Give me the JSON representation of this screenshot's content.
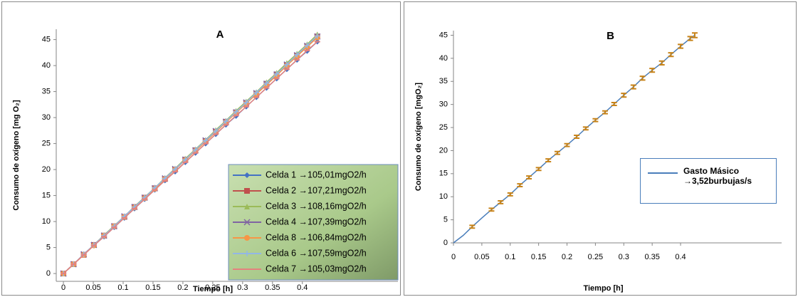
{
  "chart_data": [
    {
      "type": "line",
      "title": "A",
      "x_label": "Tiempo [h]",
      "y_label": "Consumo de oxígeno [mg O₂]",
      "x": [
        0,
        0.017,
        0.034,
        0.051,
        0.068,
        0.085,
        0.102,
        0.119,
        0.136,
        0.153,
        0.17,
        0.187,
        0.204,
        0.221,
        0.238,
        0.255,
        0.272,
        0.289,
        0.306,
        0.323,
        0.34,
        0.357,
        0.374,
        0.391,
        0.408,
        0.425
      ],
      "xlim": [
        -0.012,
        0.56
      ],
      "xticks": [
        0,
        0.05,
        0.1,
        0.15,
        0.2,
        0.25,
        0.3,
        0.35,
        0.4
      ],
      "ylim": [
        -1.5,
        47
      ],
      "yticks": [
        0,
        5,
        10,
        15,
        20,
        25,
        30,
        35,
        40,
        45
      ],
      "legend": "lower right",
      "series": [
        {
          "name": "Celda 1 →105,01mgO2/h",
          "color": "#4472c4",
          "marker": "diamond",
          "values": [
            0,
            1.8,
            3.6,
            5.4,
            7.1,
            8.9,
            10.7,
            12.5,
            14.3,
            16.1,
            17.9,
            19.6,
            21.4,
            23.2,
            25.0,
            26.8,
            28.6,
            30.3,
            32.1,
            33.9,
            35.7,
            37.5,
            39.3,
            41.1,
            42.8,
            44.6
          ]
        },
        {
          "name": "Celda 2 →107,21mgO2/h",
          "color": "#c0504d",
          "marker": "square",
          "values": [
            0,
            1.8,
            3.6,
            5.5,
            7.3,
            9.1,
            10.9,
            12.8,
            14.6,
            16.4,
            18.2,
            20.0,
            21.9,
            23.7,
            25.5,
            27.3,
            29.2,
            31.0,
            32.8,
            34.6,
            36.5,
            38.3,
            40.1,
            41.9,
            43.7,
            45.6
          ]
        },
        {
          "name": "Celda 3 →108,16mgO2/h",
          "color": "#9bbb59",
          "marker": "triangle",
          "values": [
            0,
            1.8,
            3.7,
            5.5,
            7.4,
            9.2,
            11.0,
            12.9,
            14.7,
            16.5,
            18.4,
            20.2,
            22.1,
            23.9,
            25.7,
            27.6,
            29.4,
            31.3,
            33.1,
            34.9,
            36.8,
            38.6,
            40.5,
            42.3,
            44.1,
            46.0
          ]
        },
        {
          "name": "Celda 4 →107,39mgO2/h",
          "color": "#8064a2",
          "marker": "x",
          "values": [
            0,
            1.8,
            3.7,
            5.5,
            7.3,
            9.1,
            11.0,
            12.8,
            14.6,
            16.4,
            18.3,
            20.1,
            21.9,
            23.7,
            25.6,
            27.4,
            29.2,
            31.0,
            32.9,
            34.7,
            36.5,
            38.3,
            40.2,
            42.0,
            43.8,
            45.6
          ]
        },
        {
          "name": "Celda 8 →106,84mgO2/h",
          "color": "#f79646",
          "marker": "circle",
          "values": [
            0,
            1.8,
            3.6,
            5.4,
            7.3,
            9.1,
            10.9,
            12.7,
            14.5,
            16.3,
            18.2,
            20.0,
            21.8,
            23.6,
            25.4,
            27.2,
            29.1,
            30.9,
            32.7,
            34.5,
            36.3,
            38.1,
            40.0,
            41.8,
            43.6,
            45.4
          ]
        },
        {
          "name": "Celda 6 →107,59mgO2/h",
          "color": "#92b7e6",
          "marker": "plus",
          "values": [
            0,
            1.8,
            3.7,
            5.5,
            7.3,
            9.1,
            11.0,
            12.8,
            14.6,
            16.5,
            18.3,
            20.1,
            21.9,
            23.8,
            25.6,
            27.4,
            29.3,
            31.1,
            32.9,
            34.8,
            36.6,
            38.4,
            40.2,
            42.1,
            43.9,
            45.7
          ]
        },
        {
          "name": "Celda 7 →105,03mgO2/h",
          "color": "#e4827e",
          "marker": "dash",
          "values": [
            0,
            1.8,
            3.6,
            5.4,
            7.1,
            8.9,
            10.7,
            12.5,
            14.3,
            16.1,
            17.9,
            19.6,
            21.4,
            23.2,
            25.0,
            26.8,
            28.6,
            30.4,
            32.1,
            33.9,
            35.7,
            37.5,
            39.3,
            41.1,
            42.9,
            44.6
          ]
        }
      ]
    },
    {
      "type": "errorline",
      "title": "B",
      "x_label": "Tiempo [h]",
      "y_label": "Consumo de oxígeno [mgO₂]",
      "x": [
        0,
        0.017,
        0.033,
        0.05,
        0.067,
        0.083,
        0.1,
        0.117,
        0.133,
        0.15,
        0.167,
        0.183,
        0.2,
        0.217,
        0.233,
        0.25,
        0.267,
        0.283,
        0.3,
        0.317,
        0.333,
        0.35,
        0.367,
        0.383,
        0.4,
        0.417,
        0.425
      ],
      "xlim": [
        0,
        0.578
      ],
      "xticks": [
        0,
        0.05,
        0.1,
        0.15,
        0.2,
        0.25,
        0.3,
        0.35,
        0.4
      ],
      "ylim": [
        0,
        46
      ],
      "yticks": [
        0,
        5,
        10,
        15,
        20,
        25,
        30,
        35,
        40,
        45
      ],
      "legend": "right",
      "error_color": "#c8841a",
      "series": [
        {
          "name": "Gasto Másico →3,52burbujas/s",
          "color": "#4a7ebb",
          "values": [
            0,
            1.6,
            3.5,
            5.4,
            7.2,
            8.8,
            10.5,
            12.5,
            14.2,
            16.0,
            17.9,
            19.5,
            21.2,
            23.0,
            24.8,
            26.6,
            28.3,
            30.1,
            32.0,
            33.8,
            35.7,
            37.4,
            39.0,
            40.8,
            42.6,
            44.3,
            45.0
          ],
          "errors": [
            null,
            null,
            0.3,
            null,
            0.3,
            0.3,
            0.3,
            0.3,
            0.3,
            0.3,
            0.3,
            0.3,
            0.3,
            0.3,
            0.3,
            0.3,
            0.3,
            0.3,
            0.4,
            0.4,
            0.4,
            0.4,
            0.4,
            0.4,
            0.4,
            0.4,
            0.5
          ]
        }
      ]
    }
  ]
}
